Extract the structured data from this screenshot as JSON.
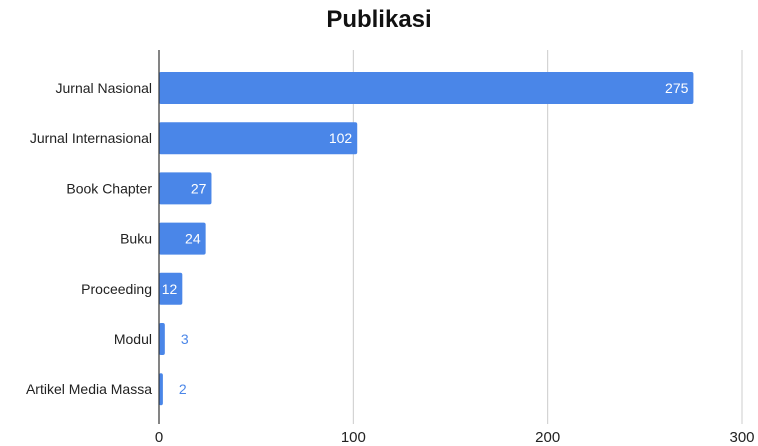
{
  "chart_data": {
    "type": "bar",
    "orientation": "horizontal",
    "title": "Publikasi",
    "categories": [
      "Jurnal Nasional",
      "Jurnal Internasional",
      "Book Chapter",
      "Buku",
      "Proceeding",
      "Modul",
      "Artikel Media Massa"
    ],
    "values": [
      275,
      102,
      27,
      24,
      12,
      3,
      2
    ],
    "data_labels": [
      "275",
      "102",
      "27",
      "24",
      "12",
      "3",
      "2"
    ],
    "x_ticks": [
      0,
      100,
      200,
      300
    ],
    "x_tick_labels": [
      "0",
      "100",
      "200",
      "300"
    ],
    "xlim": [
      0,
      300
    ],
    "grid": "vertical",
    "legend": "none",
    "colors": {
      "bar": "#4a86e8",
      "label_inside": "#ffffff",
      "label_outside": "#4a86e8",
      "grid": "#cccccc",
      "axis": "#333333",
      "text": "#222222"
    }
  }
}
